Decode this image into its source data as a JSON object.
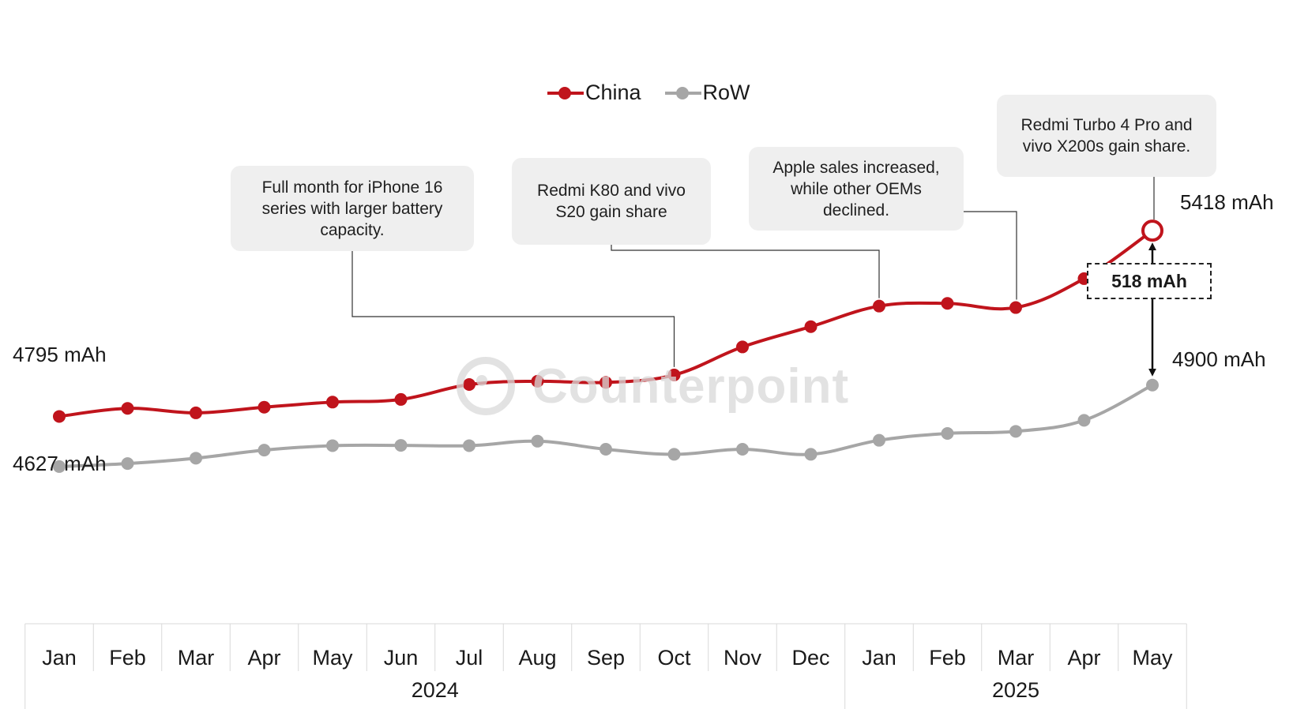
{
  "legend": {
    "china": "China",
    "row": "RoW"
  },
  "colors": {
    "china": "#c0141c",
    "row": "#a6a6a6"
  },
  "watermark": "Counterpoint",
  "callouts": [
    {
      "id": "iphone",
      "text": "Full month for iPhone 16 series with larger battery capacity."
    },
    {
      "id": "redmi-k80",
      "text": "Redmi K80 and vivo S20 gain share"
    },
    {
      "id": "apple",
      "text": "Apple sales increased, while other OEMs declined."
    },
    {
      "id": "redmi-turbo",
      "text": "Redmi Turbo 4 Pro and vivo X200s gain share."
    }
  ],
  "labels": {
    "china_start": "4795 mAh",
    "row_start": "4627 mAh",
    "china_end": "5418 mAh",
    "row_end": "4900 mAh",
    "difference": "518 mAh"
  },
  "chart_data": {
    "type": "line",
    "categories": [
      "Jan",
      "Feb",
      "Mar",
      "Apr",
      "May",
      "Jun",
      "Jul",
      "Aug",
      "Sep",
      "Oct",
      "Nov",
      "Dec",
      "Jan",
      "Feb",
      "Mar",
      "Apr",
      "May"
    ],
    "years": [
      {
        "label": "2024",
        "span": 12
      },
      {
        "label": "2025",
        "span": 5
      }
    ],
    "series": [
      {
        "name": "China",
        "values": [
          4795,
          4822,
          4807,
          4826,
          4843,
          4852,
          4902,
          4913,
          4909,
          4934,
          5028,
          5096,
          5165,
          5174,
          5160,
          5257,
          5418
        ]
      },
      {
        "name": "RoW",
        "values": [
          4627,
          4637,
          4655,
          4682,
          4697,
          4698,
          4697,
          4712,
          4685,
          4668,
          4685,
          4668,
          4715,
          4738,
          4745,
          4782,
          4900
        ]
      }
    ],
    "ylim": [
      4550,
      5450
    ],
    "grid": false,
    "legend_position": "top-center"
  }
}
